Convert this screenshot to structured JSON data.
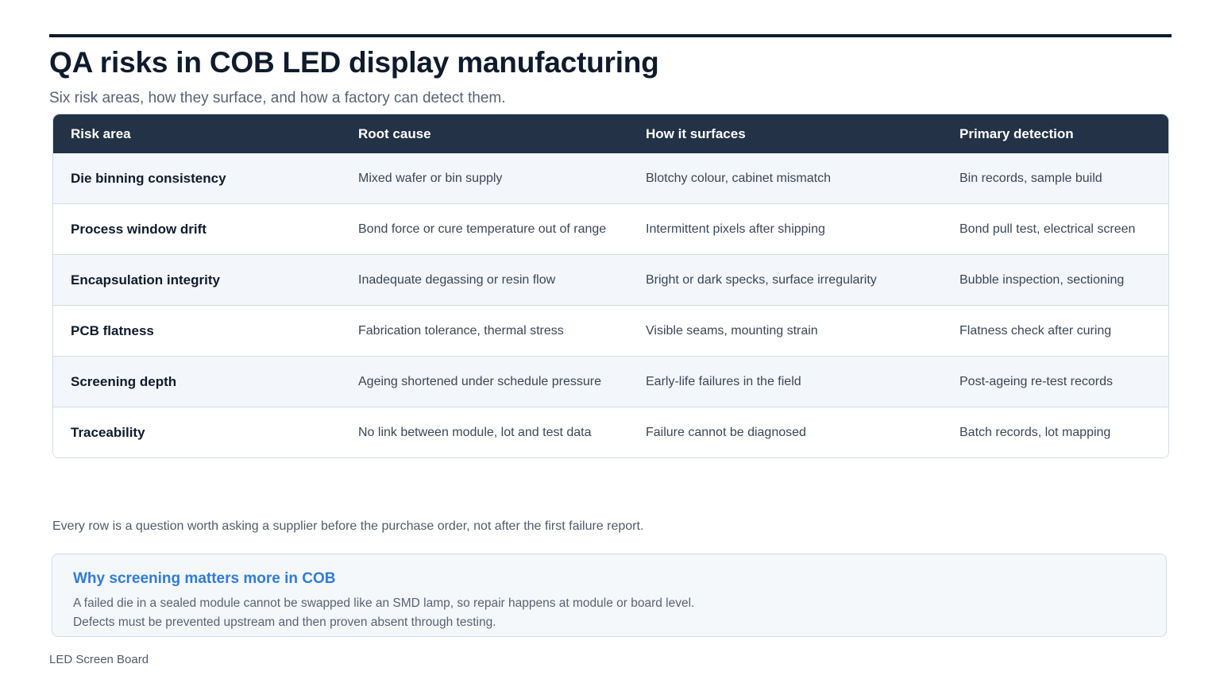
{
  "title": "QA risks in COB LED display manufacturing",
  "subtitle": "Six risk areas, how they surface, and how a factory can detect them.",
  "table": {
    "headers": [
      "Risk area",
      "Root cause",
      "How it surfaces",
      "Primary detection"
    ],
    "rows": [
      [
        "Die binning consistency",
        "Mixed wafer or bin supply",
        "Blotchy colour, cabinet mismatch",
        "Bin records, sample build"
      ],
      [
        "Process window drift",
        "Bond force or cure temperature out of range",
        "Intermittent pixels after shipping",
        "Bond pull test, electrical screen"
      ],
      [
        "Encapsulation integrity",
        "Inadequate degassing or resin flow",
        "Bright or dark specks, surface irregularity",
        "Bubble inspection, sectioning"
      ],
      [
        "PCB flatness",
        "Fabrication tolerance, thermal stress",
        "Visible seams, mounting strain",
        "Flatness check after curing"
      ],
      [
        "Screening depth",
        "Ageing shortened under schedule pressure",
        "Early-life failures in the field",
        "Post-ageing re-test records"
      ],
      [
        "Traceability",
        "No link between module, lot and test data",
        "Failure cannot be diagnosed",
        "Batch records, lot mapping"
      ]
    ]
  },
  "footnote": "Every row is a question worth asking a supplier before the purchase order, not after the first failure report.",
  "callout": {
    "title": "Why screening matters more in COB",
    "lines": [
      "A failed die in a sealed module cannot be swapped like an SMD lamp, so repair happens at module or board level.",
      "Defects must be prevented upstream and then proven absent through testing."
    ]
  },
  "footer": "LED Screen Board",
  "colors": {
    "header_bg": "#233247",
    "accent": "#2f7be0",
    "row_alt": "#f3f7fb",
    "text_dark": "#0f1b2d"
  }
}
